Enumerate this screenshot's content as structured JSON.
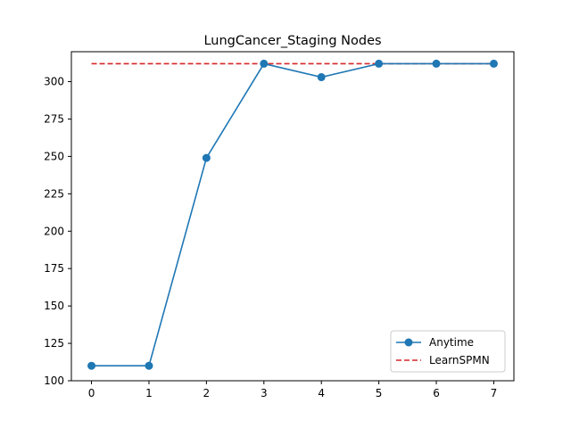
{
  "chart_data": {
    "type": "line",
    "title": "LungCancer_Staging Nodes",
    "xlabel": "",
    "ylabel": "",
    "x": [
      0,
      1,
      2,
      3,
      4,
      5,
      6,
      7
    ],
    "xticks": [
      "0",
      "1",
      "2",
      "3",
      "4",
      "5",
      "6",
      "7"
    ],
    "yticks": [
      "100",
      "125",
      "150",
      "175",
      "200",
      "225",
      "250",
      "275",
      "300"
    ],
    "xlim": [
      -0.35,
      7.35
    ],
    "ylim": [
      100,
      320
    ],
    "grid": false,
    "legend_position": "lower-right",
    "series": [
      {
        "name": "Anytime",
        "values": [
          110,
          110,
          249,
          312,
          303,
          312,
          312,
          312
        ],
        "style": "solid",
        "marker": "circle",
        "color": "#1f77b4"
      },
      {
        "name": "LearnSPMN",
        "values": [
          312,
          312,
          312,
          312,
          312,
          312,
          312,
          312
        ],
        "style": "dashed",
        "marker": "none",
        "color": "#d62728"
      }
    ]
  }
}
